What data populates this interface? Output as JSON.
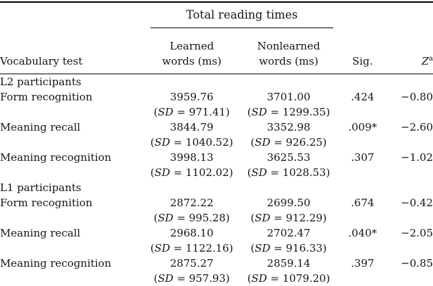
{
  "labels": {
    "lp": "(",
    "sd": "SD",
    "eq": " = ",
    "rp": ")"
  },
  "table": {
    "col_group_header": "Total reading times",
    "columns": {
      "vocab": "Vocabulary test",
      "learned_line1": "Learned",
      "learned_line2": "words (ms)",
      "nonlearned_line1": "Nonlearned",
      "nonlearned_line2": "words (ms)",
      "sig": "Sig.",
      "z": "Z",
      "z_sup": "a"
    },
    "sections": [
      {
        "label": "L2 participants",
        "rows": [
          {
            "test": "Form recognition",
            "learned_mean": "3959.76",
            "learned_sd": "971.41",
            "nonlearned_mean": "3701.00",
            "nonlearned_sd": "1299.35",
            "sig": ".424",
            "z": "−0.80"
          },
          {
            "test": "Meaning recall",
            "learned_mean": "3844.79",
            "learned_sd": "1040.52",
            "nonlearned_mean": "3352.98",
            "nonlearned_sd": "926.25",
            "sig": ".009*",
            "z": "−2.60"
          },
          {
            "test": "Meaning recognition",
            "learned_mean": "3998.13",
            "learned_sd": "1102.02",
            "nonlearned_mean": "3625.53",
            "nonlearned_sd": "1028.53",
            "sig": ".307",
            "z": "−1.02"
          }
        ]
      },
      {
        "label": "L1 participants",
        "rows": [
          {
            "test": "Form recognition",
            "learned_mean": "2872.22",
            "learned_sd": "995.28",
            "nonlearned_mean": "2699.50",
            "nonlearned_sd": "912.29",
            "sig": ".674",
            "z": "−0.42"
          },
          {
            "test": "Meaning recall",
            "learned_mean": "2968.10",
            "learned_sd": "1122.16",
            "nonlearned_mean": "2702.47",
            "nonlearned_sd": "916.33",
            "sig": ".040*",
            "z": "−2.05"
          },
          {
            "test": "Meaning recognition",
            "learned_mean": "2875.27",
            "learned_sd": "957.93",
            "nonlearned_mean": "2859.14",
            "nonlearned_sd": "1079.20",
            "sig": ".397",
            "z": "−0.85"
          }
        ]
      }
    ]
  }
}
